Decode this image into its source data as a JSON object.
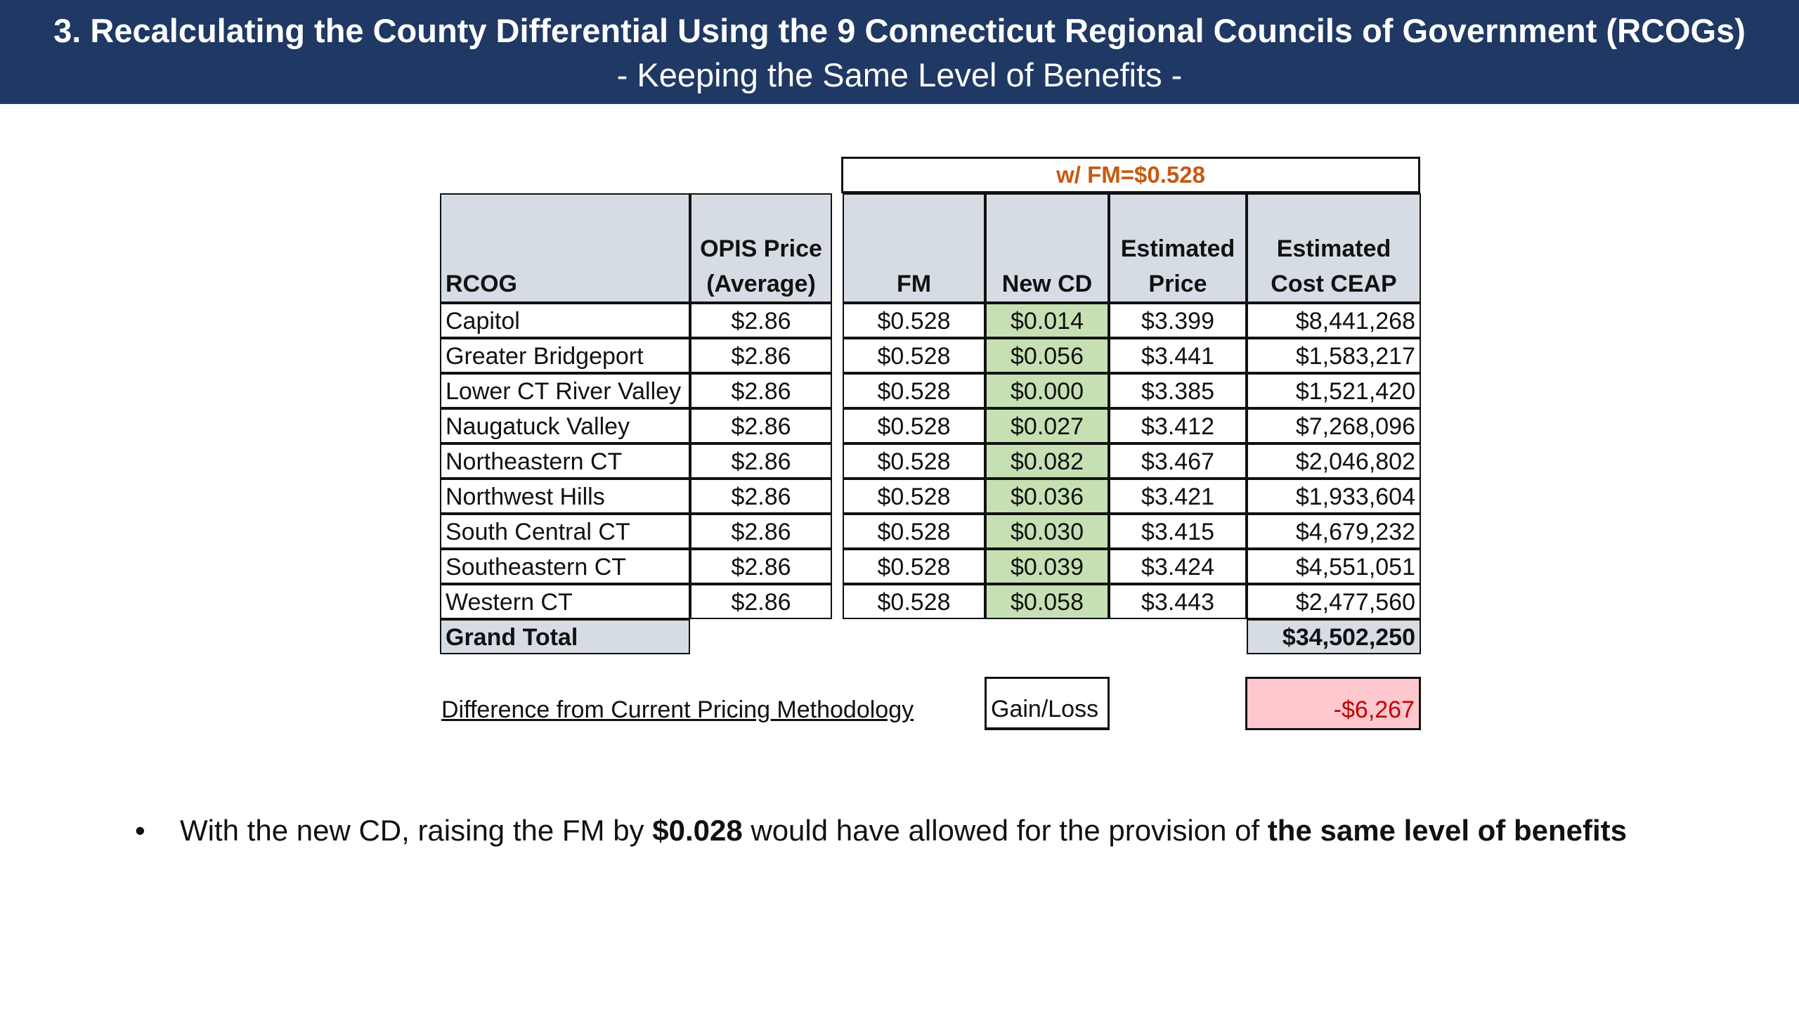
{
  "header": {
    "title": "3. Recalculating the County Differential Using the 9 Connecticut Regional Councils of Government (RCOGs)",
    "subtitle": "- Keeping the Same Level of Benefits -"
  },
  "table": {
    "group_label": "w/ FM=$0.528",
    "columns": {
      "rcog": "RCOG",
      "opis_1": "OPIS Price",
      "opis_2": "(Average)",
      "fm": "FM",
      "newcd": "New CD",
      "price_1": "Estimated",
      "price_2": "Price",
      "cost_1": "Estimated",
      "cost_2": "Cost CEAP"
    },
    "rows": [
      {
        "rcog": "Capitol",
        "opis": "$2.86",
        "fm": "$0.528",
        "cd": "$0.014",
        "price": "$3.399",
        "cost": "$8,441,268"
      },
      {
        "rcog": "Greater Bridgeport",
        "opis": "$2.86",
        "fm": "$0.528",
        "cd": "$0.056",
        "price": "$3.441",
        "cost": "$1,583,217"
      },
      {
        "rcog": "Lower CT River Valley",
        "opis": "$2.86",
        "fm": "$0.528",
        "cd": "$0.000",
        "price": "$3.385",
        "cost": "$1,521,420"
      },
      {
        "rcog": "Naugatuck Valley",
        "opis": "$2.86",
        "fm": "$0.528",
        "cd": "$0.027",
        "price": "$3.412",
        "cost": "$7,268,096"
      },
      {
        "rcog": "Northeastern CT",
        "opis": "$2.86",
        "fm": "$0.528",
        "cd": "$0.082",
        "price": "$3.467",
        "cost": "$2,046,802"
      },
      {
        "rcog": "Northwest Hills",
        "opis": "$2.86",
        "fm": "$0.528",
        "cd": "$0.036",
        "price": "$3.421",
        "cost": "$1,933,604"
      },
      {
        "rcog": "South Central CT",
        "opis": "$2.86",
        "fm": "$0.528",
        "cd": "$0.030",
        "price": "$3.415",
        "cost": "$4,679,232"
      },
      {
        "rcog": "Southeastern CT",
        "opis": "$2.86",
        "fm": "$0.528",
        "cd": "$0.039",
        "price": "$3.424",
        "cost": "$4,551,051"
      },
      {
        "rcog": "Western CT",
        "opis": "$2.86",
        "fm": "$0.528",
        "cd": "$0.058",
        "price": "$3.443",
        "cost": "$2,477,560"
      }
    ],
    "total_label": "Grand Total",
    "total_value": "$34,502,250"
  },
  "difference": {
    "label": "Difference from Current Pricing Methodology",
    "gainloss_label": "Gain/Loss",
    "value": "-$6,267"
  },
  "bullet": {
    "text_1": "With the new CD, raising the FM by ",
    "bold_1": "$0.028",
    "text_2": " would have allowed for the provision of ",
    "bold_2": "the same level of benefits"
  },
  "colors": {
    "banner": "#1f3864",
    "header_fill": "#d6dce4",
    "newcd_fill": "#c6e0b4",
    "loss_fill": "#ffc7ce",
    "loss_text": "#c00000",
    "group_label_text": "#c55a11"
  }
}
